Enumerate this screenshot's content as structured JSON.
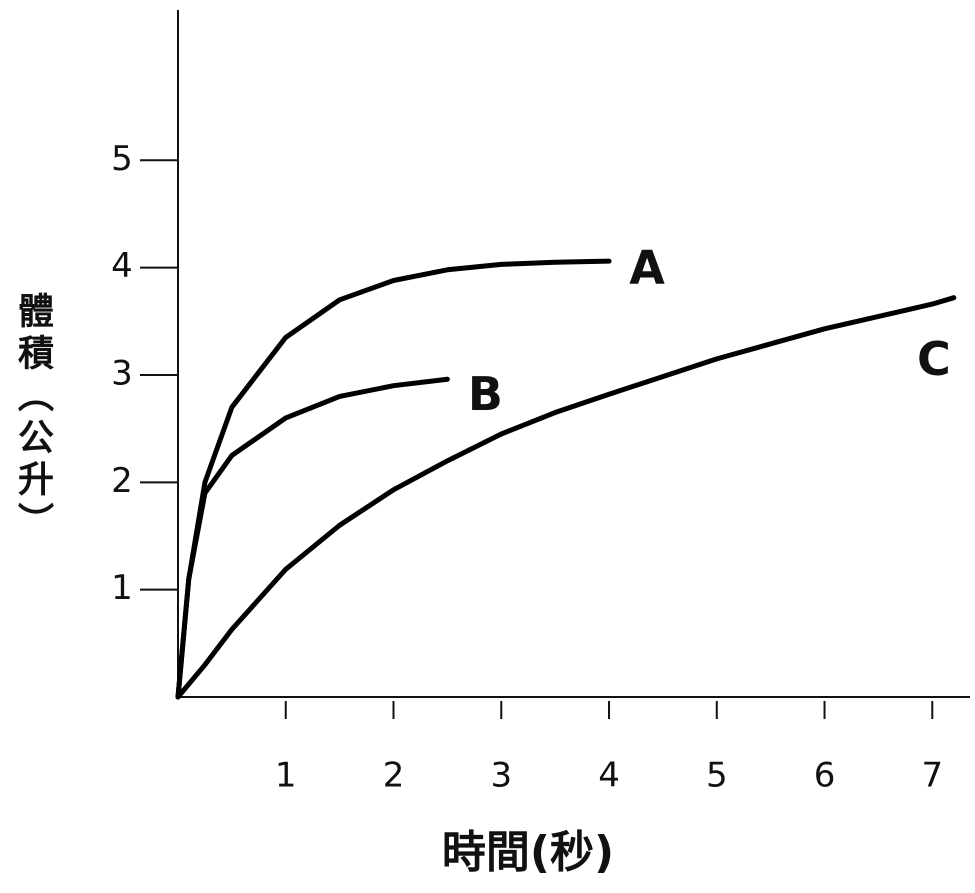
{
  "chart_data": {
    "type": "line",
    "x_label": "時間(秒)",
    "y_label": "體積（公升）",
    "x": [
      0,
      0.1,
      0.25,
      0.5,
      1,
      1.5,
      2,
      2.5,
      3,
      3.5,
      4,
      5,
      6,
      7,
      7.2
    ],
    "series": [
      {
        "name": "A",
        "color": "#000000",
        "values": [
          0,
          1.1,
          2.0,
          2.7,
          3.35,
          3.7,
          3.88,
          3.98,
          4.03,
          4.05,
          4.06,
          null,
          null,
          null,
          null
        ]
      },
      {
        "name": "B",
        "color": "#000000",
        "values": [
          0,
          1.1,
          1.9,
          2.25,
          2.6,
          2.8,
          2.9,
          2.96,
          null,
          null,
          null,
          null,
          null,
          null,
          null
        ]
      },
      {
        "name": "C",
        "color": "#000000",
        "values": [
          0,
          0.12,
          0.3,
          0.63,
          1.19,
          1.6,
          1.93,
          2.2,
          2.45,
          2.65,
          2.82,
          3.15,
          3.43,
          3.66,
          3.72
        ]
      }
    ],
    "xlim": [
      0,
      7.35
    ],
    "ylim": [
      0,
      6.4
    ],
    "xticks": [
      1,
      2,
      3,
      4,
      5,
      6,
      7
    ],
    "yticks": [
      1,
      2,
      3,
      4,
      5
    ]
  }
}
